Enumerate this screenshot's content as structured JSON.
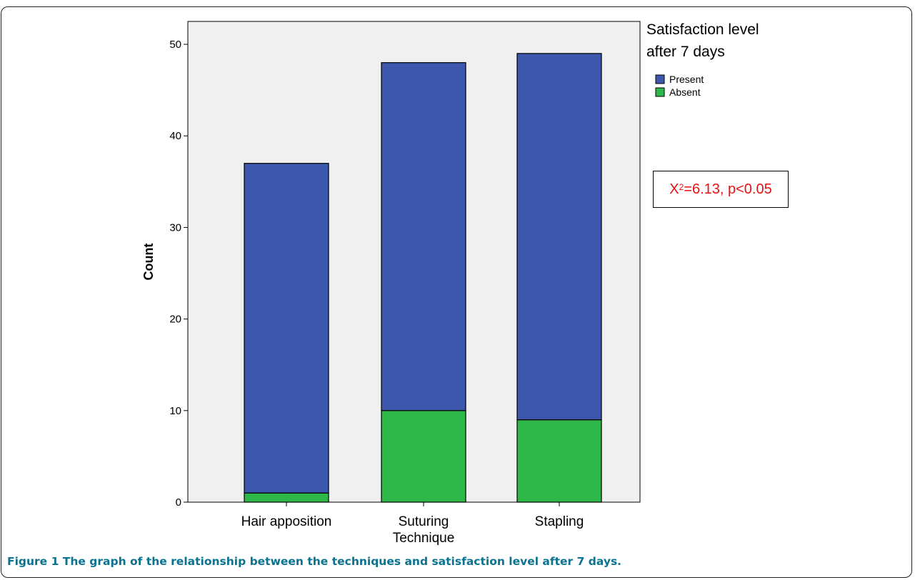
{
  "caption": {
    "label": "Figure 1",
    "text": "The graph of the relationship between the techniques and satisfaction level after 7 days."
  },
  "annotation": {
    "symbol": "X",
    "superscript": "2",
    "text": "=6.13, p<0.05",
    "color": "#e8110f"
  },
  "chart_data": {
    "type": "bar",
    "stacked": true,
    "categories": [
      [
        "Hair apposition"
      ],
      [
        "Suturing",
        "Technique"
      ],
      [
        "Stapling"
      ]
    ],
    "series": [
      {
        "name": "Absent",
        "values": [
          1,
          10,
          9
        ],
        "color": "#2fb84a"
      },
      {
        "name": "Present",
        "values": [
          36,
          38,
          40
        ],
        "color": "#3d57ad"
      }
    ],
    "ylabel": "Count",
    "xlabel": "",
    "ylim": [
      0,
      52.5
    ],
    "yticks": [
      0,
      10,
      20,
      30,
      40,
      50
    ],
    "legend": {
      "title_lines": [
        "Satisfaction level",
        "after 7 days"
      ],
      "position": "top-right",
      "order": [
        "Present",
        "Absent"
      ]
    },
    "grid": false,
    "plot_background": "#f0f0f0"
  }
}
